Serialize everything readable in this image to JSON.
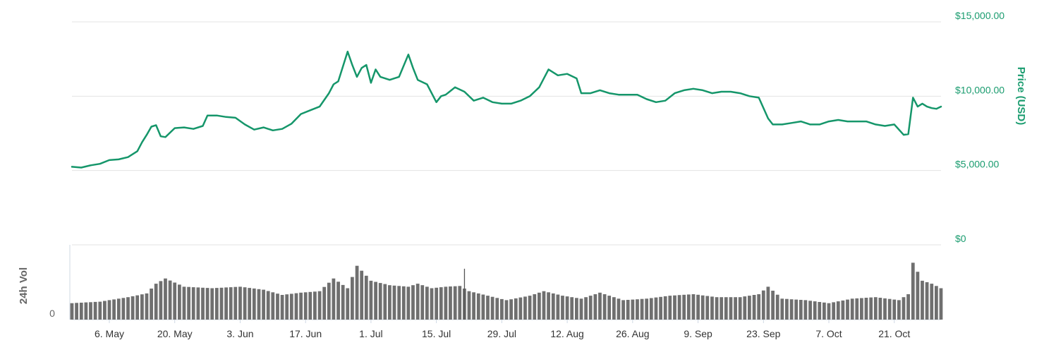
{
  "chart_data": {
    "type": "line",
    "colors": {
      "price_line": "#15966a",
      "volume_bar": "#6f6f6f",
      "grid": "#e3e3e3",
      "price_axis": "#1a9c6f"
    },
    "price_axis": {
      "label": "Price (USD)",
      "position": "right",
      "ylim": [
        0,
        15000
      ],
      "ticks": [
        {
          "value": 15000,
          "label": "$15,000.00"
        },
        {
          "value": 10000,
          "label": "$10,000.00"
        },
        {
          "value": 5000,
          "label": "$5,000.00"
        },
        {
          "value": 0,
          "label": "$0"
        }
      ]
    },
    "volume_axis": {
      "label": "24h Vol",
      "zero_label": "0",
      "position": "left",
      "ylim": [
        0,
        100
      ]
    },
    "x_axis": {
      "range": [
        "2019-04-28",
        "2019-10-31"
      ],
      "ticks": [
        {
          "date": "2019-05-06",
          "label": "6. May"
        },
        {
          "date": "2019-05-20",
          "label": "20. May"
        },
        {
          "date": "2019-06-03",
          "label": "3. Jun"
        },
        {
          "date": "2019-06-17",
          "label": "17. Jun"
        },
        {
          "date": "2019-07-01",
          "label": "1. Jul"
        },
        {
          "date": "2019-07-15",
          "label": "15. Jul"
        },
        {
          "date": "2019-07-29",
          "label": "29. Jul"
        },
        {
          "date": "2019-08-12",
          "label": "12. Aug"
        },
        {
          "date": "2019-08-26",
          "label": "26. Aug"
        },
        {
          "date": "2019-09-09",
          "label": "9. Sep"
        },
        {
          "date": "2019-09-23",
          "label": "23. Sep"
        },
        {
          "date": "2019-10-07",
          "label": "7. Oct"
        },
        {
          "date": "2019-10-21",
          "label": "21. Oct"
        }
      ]
    },
    "series": [
      {
        "x": [
          "2019-04-28",
          "2019-04-30",
          "2019-05-02",
          "2019-05-04",
          "2019-05-06",
          "2019-05-08",
          "2019-05-10",
          "2019-05-12",
          "2019-05-13",
          "2019-05-14",
          "2019-05-15",
          "2019-05-16",
          "2019-05-17",
          "2019-05-18",
          "2019-05-20",
          "2019-05-22",
          "2019-05-24",
          "2019-05-26",
          "2019-05-27",
          "2019-05-29",
          "2019-05-31",
          "2019-06-02",
          "2019-06-04",
          "2019-06-06",
          "2019-06-08",
          "2019-06-10",
          "2019-06-12",
          "2019-06-14",
          "2019-06-16",
          "2019-06-18",
          "2019-06-20",
          "2019-06-22",
          "2019-06-23",
          "2019-06-24",
          "2019-06-26",
          "2019-06-27",
          "2019-06-28",
          "2019-06-29",
          "2019-06-30",
          "2019-07-01",
          "2019-07-02",
          "2019-07-03",
          "2019-07-05",
          "2019-07-07",
          "2019-07-09",
          "2019-07-10",
          "2019-07-11",
          "2019-07-13",
          "2019-07-15",
          "2019-07-16",
          "2019-07-17",
          "2019-07-19",
          "2019-07-21",
          "2019-07-23",
          "2019-07-25",
          "2019-07-27",
          "2019-07-29",
          "2019-07-31",
          "2019-08-02",
          "2019-08-04",
          "2019-08-06",
          "2019-08-08",
          "2019-08-10",
          "2019-08-12",
          "2019-08-14",
          "2019-08-15",
          "2019-08-17",
          "2019-08-19",
          "2019-08-21",
          "2019-08-23",
          "2019-08-25",
          "2019-08-27",
          "2019-08-29",
          "2019-08-31",
          "2019-09-02",
          "2019-09-04",
          "2019-09-06",
          "2019-09-08",
          "2019-09-10",
          "2019-09-12",
          "2019-09-14",
          "2019-09-16",
          "2019-09-18",
          "2019-09-20",
          "2019-09-22",
          "2019-09-24",
          "2019-09-25",
          "2019-09-27",
          "2019-09-29",
          "2019-10-01",
          "2019-10-03",
          "2019-10-05",
          "2019-10-07",
          "2019-10-09",
          "2019-10-11",
          "2019-10-13",
          "2019-10-15",
          "2019-10-17",
          "2019-10-19",
          "2019-10-21",
          "2019-10-23",
          "2019-10-24",
          "2019-10-25",
          "2019-10-26",
          "2019-10-27",
          "2019-10-28",
          "2019-10-29",
          "2019-10-30",
          "2019-10-31"
        ],
        "values": [
          5250,
          5200,
          5350,
          5450,
          5700,
          5750,
          5900,
          6300,
          6900,
          7400,
          7950,
          8050,
          7300,
          7250,
          7850,
          7900,
          7800,
          8000,
          8700,
          8700,
          8600,
          8550,
          8100,
          7750,
          7900,
          7700,
          7800,
          8150,
          8800,
          9050,
          9300,
          10200,
          10800,
          11000,
          13000,
          12100,
          11300,
          11900,
          12100,
          10900,
          11800,
          11300,
          11100,
          11300,
          12800,
          11900,
          11100,
          10800,
          9600,
          10000,
          10100,
          10600,
          10300,
          9700,
          9900,
          9600,
          9500,
          9500,
          9700,
          10000,
          10600,
          11800,
          11400,
          11500,
          11200,
          10200,
          10200,
          10400,
          10200,
          10100,
          10100,
          10100,
          9800,
          9600,
          9700,
          10200,
          10400,
          10500,
          10400,
          10200,
          10300,
          10300,
          10200,
          10000,
          9900,
          8500,
          8100,
          8100,
          8200,
          8300,
          8100,
          8100,
          8300,
          8400,
          8300,
          8300,
          8300,
          8100,
          8000,
          8100,
          7400,
          7450,
          9900,
          9300,
          9500,
          9300,
          9200,
          9150,
          9300
        ]
      },
      {
        "x": [
          "2019-04-28",
          "2019-05-04",
          "2019-05-10",
          "2019-05-14",
          "2019-05-16",
          "2019-05-18",
          "2019-05-22",
          "2019-05-28",
          "2019-06-03",
          "2019-06-08",
          "2019-06-12",
          "2019-06-16",
          "2019-06-20",
          "2019-06-23",
          "2019-06-26",
          "2019-06-28",
          "2019-07-01",
          "2019-07-05",
          "2019-07-09",
          "2019-07-11",
          "2019-07-14",
          "2019-07-17",
          "2019-07-20",
          "2019-07-22",
          "2019-07-26",
          "2019-07-30",
          "2019-08-04",
          "2019-08-07",
          "2019-08-11",
          "2019-08-15",
          "2019-08-19",
          "2019-08-24",
          "2019-08-29",
          "2019-09-03",
          "2019-09-08",
          "2019-09-13",
          "2019-09-18",
          "2019-09-22",
          "2019-09-24",
          "2019-09-27",
          "2019-10-02",
          "2019-10-07",
          "2019-10-12",
          "2019-10-17",
          "2019-10-22",
          "2019-10-24",
          "2019-10-25",
          "2019-10-27",
          "2019-10-29",
          "2019-10-31"
        ],
        "values": [
          22,
          24,
          30,
          35,
          48,
          55,
          44,
          42,
          44,
          40,
          33,
          36,
          38,
          55,
          42,
          72,
          52,
          46,
          44,
          48,
          42,
          44,
          45,
          38,
          32,
          26,
          32,
          38,
          32,
          28,
          36,
          26,
          28,
          32,
          34,
          30,
          30,
          34,
          44,
          28,
          26,
          22,
          28,
          30,
          26,
          34,
          76,
          52,
          48,
          42
        ]
      },
      {
        "x": [
          "2019-07-21"
        ],
        "values": [
          68
        ]
      }
    ]
  }
}
